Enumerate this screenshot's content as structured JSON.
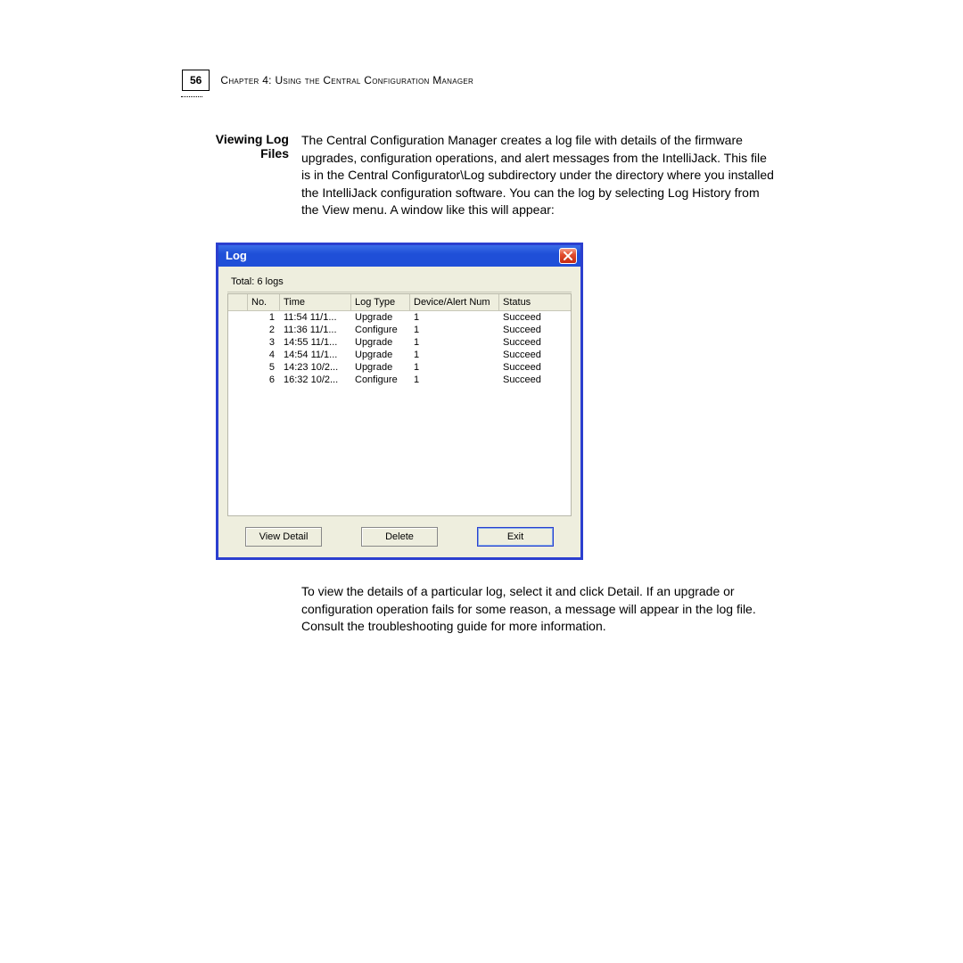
{
  "page": {
    "number": "56",
    "chapter_label": "Chapter 4: Using the Central Configuration Manager"
  },
  "section": {
    "heading": "Viewing Log Files",
    "intro": "The Central Configuration Manager creates a log file with details of the firmware upgrades, configuration operations, and alert messages from the IntelliJack. This file is in the Central Configurator\\Log subdirectory under the directory where you installed the IntelliJack configuration software. You can the log by selecting Log History from the View menu. A window like this will appear:",
    "outro": "To view the details of a particular log, select it and click Detail. If an upgrade or configuration operation fails for some reason, a message will appear in the log file. Consult the troubleshooting guide for more information."
  },
  "dialog": {
    "title": "Log",
    "total_label": "Total: 6 logs",
    "columns": {
      "blank": "",
      "no": "No.",
      "time": "Time",
      "logtype": "Log Type",
      "devnum": "Device/Alert Num",
      "status": "Status"
    },
    "rows": [
      {
        "no": "1",
        "time": "11:54 11/1...",
        "logtype": "Upgrade",
        "devnum": "1",
        "status": "Succeed"
      },
      {
        "no": "2",
        "time": "11:36 11/1...",
        "logtype": "Configure",
        "devnum": "1",
        "status": "Succeed"
      },
      {
        "no": "3",
        "time": "14:55 11/1...",
        "logtype": "Upgrade",
        "devnum": "1",
        "status": "Succeed"
      },
      {
        "no": "4",
        "time": "14:54 11/1...",
        "logtype": "Upgrade",
        "devnum": "1",
        "status": "Succeed"
      },
      {
        "no": "5",
        "time": "14:23 10/2...",
        "logtype": "Upgrade",
        "devnum": "1",
        "status": "Succeed"
      },
      {
        "no": "6",
        "time": "16:32 10/2...",
        "logtype": "Configure",
        "devnum": "1",
        "status": "Succeed"
      }
    ],
    "buttons": {
      "view_detail": "View Detail",
      "delete": "Delete",
      "exit": "Exit"
    },
    "colors": {
      "titlebar_start": "#3a6ee8",
      "titlebar_end": "#1f4fd8",
      "border": "#2b3fcf",
      "body_bg": "#eeeede",
      "close_bg": "#e24e2f"
    }
  }
}
